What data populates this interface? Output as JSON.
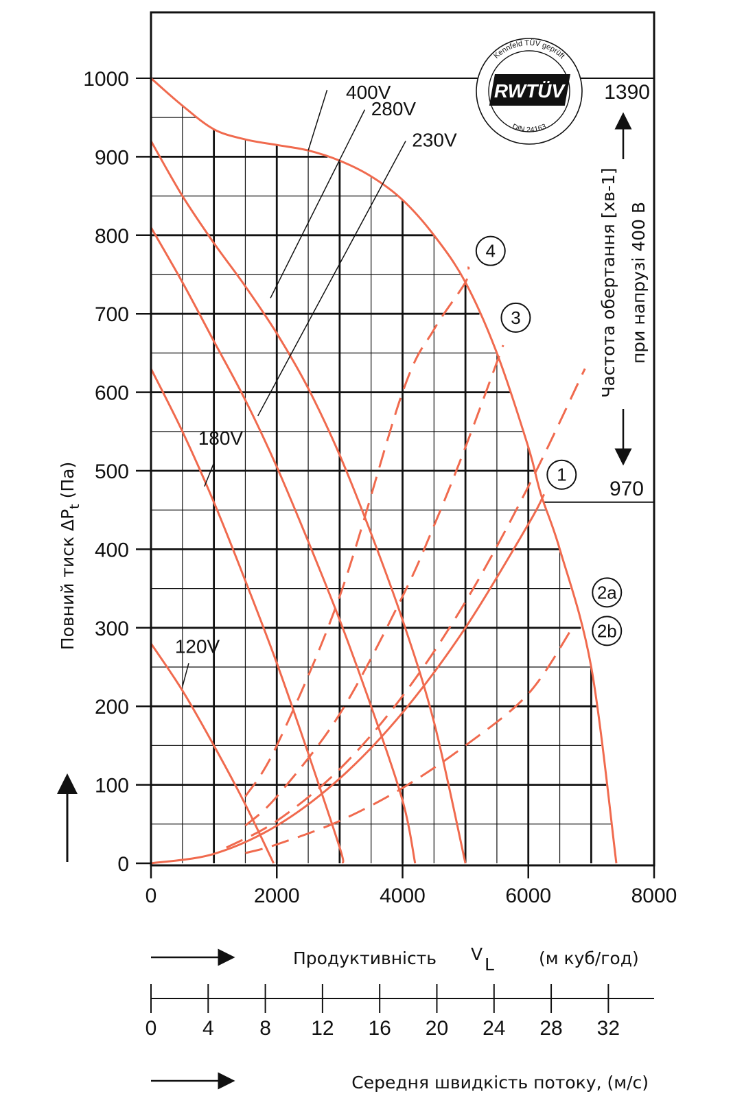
{
  "chart_data": {
    "type": "line",
    "xlim": [
      0,
      8000
    ],
    "ylim": [
      0,
      1000
    ],
    "x_ticks": [
      "0",
      "2000",
      "4000",
      "6000",
      "8000"
    ],
    "y_ticks": [
      "0",
      "100",
      "200",
      "300",
      "400",
      "500",
      "600",
      "700",
      "800",
      "900",
      "1000"
    ],
    "xlabel": "Продуктивність",
    "xlabel_symbol": "V",
    "xlabel_subscript": "L",
    "xlabel_unit": "(м куб/год)",
    "ylabel": "Повний тиск ΔP",
    "ylabel_subscript": "t",
    "ylabel_unit": " (Па)",
    "velocity_axis": {
      "label": "Середня швидкість потоку, (м/с)",
      "ticks": [
        "0",
        "4",
        "8",
        "12",
        "16",
        "20",
        "24",
        "28",
        "32"
      ],
      "max_velocity": 35.2
    },
    "right_axis": {
      "label_line1": "Частота  обертання [хв-1]",
      "label_line2": "при напрузі 400 В",
      "top_value": "1390",
      "bottom_value": "970",
      "top_pressure": 1000,
      "bottom_pressure": 460
    },
    "series": [
      {
        "name": "400V",
        "style": "solid",
        "x": [
          0,
          500,
          1000,
          1500,
          2000,
          2500,
          3000,
          3500,
          4000,
          4500,
          5000,
          5500,
          6000,
          6200,
          6500,
          7000,
          7400
        ],
        "y": [
          1000,
          965,
          935,
          922,
          915,
          908,
          895,
          875,
          845,
          800,
          740,
          650,
          530,
          470,
          400,
          250,
          0
        ]
      },
      {
        "name": "280V",
        "style": "solid",
        "x": [
          0,
          500,
          1000,
          1500,
          2000,
          2500,
          3000,
          3500,
          4000,
          4500,
          5000
        ],
        "y": [
          920,
          850,
          790,
          735,
          675,
          605,
          520,
          420,
          310,
          180,
          0
        ]
      },
      {
        "name": "230V",
        "style": "solid",
        "x": [
          0,
          500,
          1000,
          1500,
          2000,
          2500,
          3000,
          3500,
          4000,
          4200
        ],
        "y": [
          810,
          740,
          665,
          590,
          505,
          410,
          310,
          200,
          80,
          0
        ]
      },
      {
        "name": "180V",
        "style": "solid",
        "x": [
          0,
          500,
          1000,
          1500,
          2000,
          2500,
          3000,
          3050
        ],
        "y": [
          630,
          550,
          460,
          360,
          255,
          140,
          20,
          0
        ]
      },
      {
        "name": "120V",
        "style": "solid",
        "x": [
          0,
          500,
          1000,
          1500,
          1950
        ],
        "y": [
          280,
          220,
          150,
          75,
          0
        ]
      },
      {
        "name": "1",
        "style": "solid",
        "x": [
          0,
          1000,
          2000,
          3000,
          4000,
          5000,
          6000,
          6250
        ],
        "y": [
          0,
          12,
          48,
          108,
          192,
          300,
          432,
          470
        ]
      },
      {
        "name": "2a",
        "style": "dashed",
        "x": [
          1200,
          2000,
          3000,
          4000,
          5000,
          6000,
          6900
        ],
        "y": [
          20,
          54,
          120,
          213,
          333,
          480,
          630
        ]
      },
      {
        "name": "2b",
        "style": "dashed",
        "x": [
          1500,
          2000,
          3000,
          4000,
          5000,
          6000,
          6700
        ],
        "y": [
          13,
          24,
          54,
          96,
          150,
          216,
          300
        ]
      },
      {
        "name": "3",
        "style": "dashed",
        "x": [
          1500,
          2000,
          3000,
          4000,
          4500,
          5000,
          5600
        ],
        "y": [
          48,
          85,
          190,
          340,
          430,
          530,
          660
        ]
      },
      {
        "name": "4",
        "style": "dashed",
        "x": [
          1500,
          2000,
          3000,
          4000,
          4500,
          5000,
          5050
        ],
        "y": [
          85,
          150,
          340,
          600,
          680,
          740,
          760
        ]
      }
    ],
    "series_labels": [
      {
        "text": "400V",
        "tip_x": 2500,
        "tip_y": 908
      },
      {
        "text": "280V",
        "tip_x": 1900,
        "tip_y": 720
      },
      {
        "text": "230V",
        "tip_x": 1700,
        "tip_y": 570
      },
      {
        "text": "180V",
        "tip_x": 850,
        "tip_y": 480
      },
      {
        "text": "120V",
        "tip_x": 500,
        "tip_y": 225
      }
    ],
    "curve_markers": [
      "4",
      "3",
      "1",
      "2a",
      "2b"
    ],
    "seal": {
      "top_text": "Kennfeld TÜV geprüft",
      "brand": "RWTÜV",
      "bottom_text": "DIN 24163"
    },
    "colors": {
      "curve": "#f06a4e",
      "grid": "#111111",
      "axis": "#111111"
    }
  }
}
